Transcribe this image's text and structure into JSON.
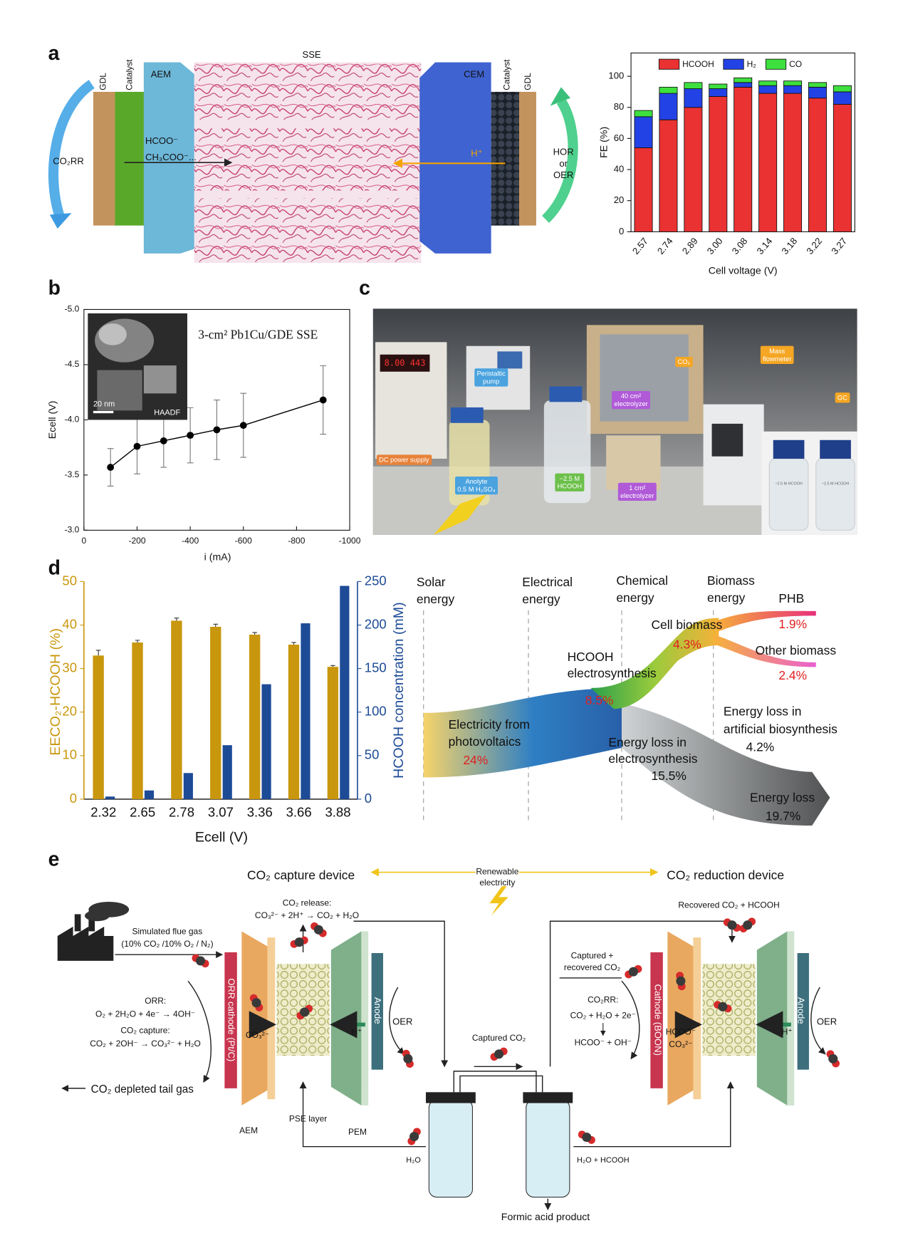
{
  "panel_labels": [
    "a",
    "b",
    "c",
    "d",
    "e"
  ],
  "diagram_a": {
    "labels": [
      "GDL",
      "Catalyst",
      "AEM",
      "SSE",
      "CEM",
      "Catalyst",
      "GDL",
      "CO₂RR",
      "HCOO⁻",
      "CH₃COO⁻...",
      "H⁺",
      "HOR",
      "or",
      "OER"
    ]
  },
  "chart_data": [
    {
      "type": "bar",
      "stacked": true,
      "categories": [
        "2.57",
        "2.74",
        "2.89",
        "3.00",
        "3.08",
        "3.14",
        "3.18",
        "3.22",
        "3.27"
      ],
      "series": [
        {
          "name": "HCOOH",
          "color": "#ea3232",
          "values": [
            54,
            72,
            80,
            87,
            93,
            89,
            89,
            86,
            82
          ]
        },
        {
          "name": "H₂",
          "color": "#2342e6",
          "values": [
            20,
            17,
            12,
            5,
            3,
            5,
            5,
            7,
            8
          ]
        },
        {
          "name": "CO",
          "color": "#3ee03e",
          "values": [
            4,
            4,
            4,
            3,
            3,
            3,
            3,
            3,
            4
          ]
        }
      ],
      "ylim": [
        0,
        115
      ],
      "yticks": [
        0,
        20,
        40,
        60,
        80,
        100
      ],
      "xlabel": "Cell voltage (V)",
      "ylabel": "FE (%)",
      "legend": "top"
    },
    {
      "type": "line",
      "x": [
        -100,
        -200,
        -300,
        -400,
        -500,
        -600,
        -900
      ],
      "values": [
        -3.57,
        -3.76,
        -3.81,
        -3.86,
        -3.91,
        -3.95,
        -4.18
      ],
      "errors": [
        0.17,
        0.25,
        0.24,
        0.25,
        0.27,
        0.29,
        0.31
      ],
      "xlim": [
        0,
        -1000
      ],
      "xticks": [
        0,
        -200,
        -400,
        -600,
        -800,
        -1000
      ],
      "ylim": [
        -3,
        -5
      ],
      "yticks": [
        {
          "value": -3,
          "label": "-3.0"
        },
        -3.5,
        {
          "value": -4,
          "label": "-4.0"
        },
        -4.5,
        {
          "value": -5,
          "label": "-5.0"
        }
      ],
      "color": "#000000",
      "xlabel": "i (mA)",
      "ylabel": "Ecell (V)",
      "annotation": "3-cm² Pb1Cu/GDE SSE",
      "inset_labels": [
        "20 nm",
        "HAADF"
      ]
    },
    {
      "type": "bar",
      "categories": [
        "2.32",
        "2.65",
        "2.78",
        "3.07",
        "3.36",
        "3.66",
        "3.88"
      ],
      "series": [
        {
          "color": "#c9970d",
          "values": [
            33.0,
            36.0,
            41.0,
            39.6,
            37.8,
            35.5,
            30.4
          ],
          "errors": [
            1.2,
            0.5,
            0.6,
            0.6,
            0.5,
            0.5,
            0.3
          ]
        },
        {
          "color": "#1d4b96",
          "values": [
            3,
            10,
            30,
            62,
            132,
            202,
            245
          ],
          "axis": "y2"
        }
      ],
      "ylim": [
        0,
        50
      ],
      "yticks": [
        0,
        10,
        20,
        30,
        40,
        50
      ],
      "y2lim": [
        0,
        250
      ],
      "y2ticks": [
        0,
        50,
        100,
        150,
        200,
        250
      ],
      "xlabel": "Ecell (V)",
      "ylabel": "EECO₂-HCOOH (%)",
      "y2label": "HCOOH concentration (mM)"
    }
  ],
  "photo_c": {
    "labels": [
      {
        "lines": [
          "CO₂"
        ]
      },
      {
        "lines": [
          "Mass",
          "flowmeter"
        ]
      },
      {
        "lines": [
          "GC"
        ]
      },
      {
        "lines": [
          "Peristaltic",
          "pump"
        ]
      },
      {
        "lines": [
          "40 cm²",
          "electrolyzer"
        ]
      },
      {
        "lines": [
          "DC power supply"
        ]
      },
      {
        "lines": [
          "Anolyte",
          "0.5 M H₂SO₄"
        ]
      },
      {
        "lines": [
          "~2.5 M",
          "HCOOH"
        ]
      },
      {
        "lines": [
          "1 cm²",
          "electrolyzer"
        ]
      }
    ],
    "display": "8.00 443",
    "bottle_labels": [
      "~2.5 M HCOOH",
      "~2.5 M HCOOH"
    ]
  },
  "sankey_d": {
    "labels": [
      "Solar",
      "energy",
      "Electrical",
      "energy",
      "Chemical",
      "energy",
      "Biomass",
      "energy",
      "PHB",
      "1.9%",
      "Cell biomass",
      "4.3%",
      "Other biomass",
      "2.4%",
      "HCOOH",
      "electrosynthesis",
      "8.5%",
      "Energy loss in",
      "artificial biosynthesis",
      "4.2%",
      "Electricity from",
      "photovoltaics",
      "24%",
      "Energy loss in",
      "electrosynthesis",
      "15.5%",
      "Energy loss",
      "19.7%"
    ]
  },
  "diagram_e": {
    "labels": [
      "CO₂ capture device",
      "Renewable",
      "electricity",
      "CO₂ reduction device",
      "Simulated flue gas",
      "(10% CO₂ /10% O₂ / N₂)",
      "CO₂ release:",
      "CO₃²⁻ + 2H⁺ → CO₂ + H₂O",
      "Recovered CO₂ + HCOOH",
      "ORR:",
      "O₂ + 2H₂O + 4e⁻ → 4OH⁻",
      "CO₂ capture:",
      "CO₂ + 2OH⁻ → CO₃²⁻ + H₂O",
      "CO₂ depleted tail gas",
      "ORR cathode (Pt/C)",
      "CO₃²⁻",
      "H⁺",
      "Anode",
      "OER",
      "AEM",
      "PSE layer",
      "PEM",
      "Captured CO₂",
      "H₂O",
      "H₂O + HCOOH",
      "Formic acid product",
      "Captured +",
      "recovered CO₂",
      "CO₂RR:",
      "CO₂ + H₂O + 2e⁻",
      "HCOO⁻ + OH⁻",
      "Cathode (BOON)",
      "HCOO⁻",
      "CO₃²⁻",
      "H⁺",
      "Anode",
      "OER"
    ]
  }
}
